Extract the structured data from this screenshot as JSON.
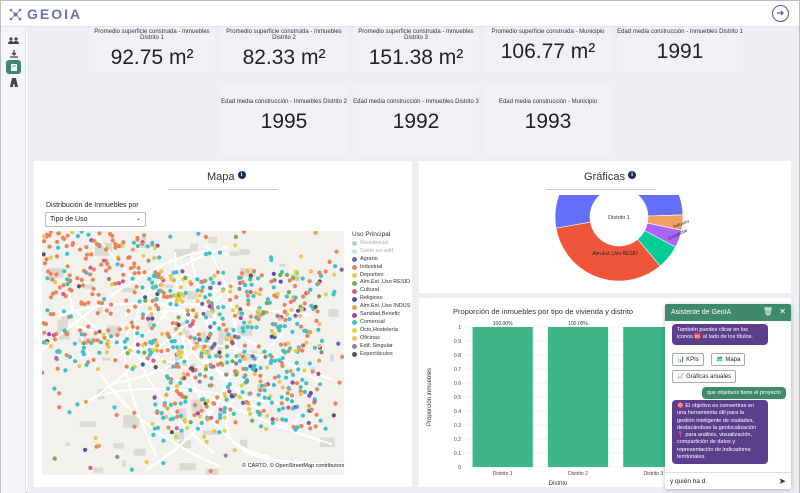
{
  "app": {
    "name": "GEOIA",
    "accent": "#3f8a6b",
    "chat_purple": "#5b3f8c"
  },
  "sidebar": {
    "items": [
      {
        "icon": "users-icon"
      },
      {
        "icon": "download-icon"
      },
      {
        "icon": "book-icon"
      },
      {
        "icon": "map-road-icon"
      }
    ]
  },
  "kpis": [
    {
      "label": "Promedio superficie construida - Inmuebles Distrito 1",
      "value": "92.75 m²"
    },
    {
      "label": "Promedio superficie construida - Inmuebles Distrito 2",
      "value": "82.33 m²"
    },
    {
      "label": "Promedio superficie construida - Inmuebles Distrito 3",
      "value": "151.38 m²"
    },
    {
      "label": "Promedio superficie construida - Municipio",
      "value": "106.77 m²"
    },
    {
      "label": "Edad media construcción - Inmuebles Distrito 1",
      "value": "1991"
    },
    {
      "label": "Edad media construcción - Inmuebles Distrito 2",
      "value": "1995"
    },
    {
      "label": "Edad media construcción - Inmuebles Distrito 3",
      "value": "1992"
    },
    {
      "label": "Edad media construcción - Municipio",
      "value": "1993"
    }
  ],
  "map": {
    "title": "Mapa",
    "dist_label": "Distribución de Inmuebles por",
    "select_value": "Tipo de Uso",
    "attribution": "© CARTO, © OpenStreetMap contributors",
    "legend_title": "Uso Principal",
    "legend": [
      {
        "label": "Residencial",
        "color": "#b8c7d9"
      },
      {
        "label": "Suelo sin edif.",
        "color": "#c9e3df"
      },
      {
        "label": "Agrario",
        "color": "#7b5fa8"
      },
      {
        "label": "Industrial",
        "color": "#e8845a"
      },
      {
        "label": "Deportivo",
        "color": "#e6c84a"
      },
      {
        "label": "Alm.Est.,Uso RESID",
        "color": "#7aa84a"
      },
      {
        "label": "Cultural",
        "color": "#d85a8a"
      },
      {
        "label": "Religioso",
        "color": "#4c56a3"
      },
      {
        "label": "Alm.Est.,Uso INDUS",
        "color": "#e8a04a"
      },
      {
        "label": "Sanidad,Benefic",
        "color": "#9c4aa8"
      },
      {
        "label": "Comercial",
        "color": "#3ec0c9"
      },
      {
        "label": "Ocio,Hostelería",
        "color": "#d6d64a"
      },
      {
        "label": "Oficinas",
        "color": "#f0c060"
      },
      {
        "label": "Edif. Singular",
        "color": "#8a8a8a"
      },
      {
        "label": "Espectáculos",
        "color": "#555555"
      }
    ]
  },
  "graficas": {
    "title": "Gráficas",
    "donut": {
      "center": "Distrito 1",
      "labels": [
        "Alm.Est.,Uso RESID",
        "Industrial",
        "Comercial"
      ]
    },
    "bar_chart_title": "Proporción de inmuebles por tipo de vivienda y distrito"
  },
  "chart_data": {
    "type": "bar",
    "title": "Proporción de inmuebles por tipo de vivienda y distrito",
    "categories": [
      "Distrito 1",
      "Distrito 2",
      "Distrito 3"
    ],
    "values": [
      1,
      1,
      1
    ],
    "data_labels": [
      "100.00%",
      "100.00%",
      ""
    ],
    "xlabel": "Distrito",
    "ylabel": "Proporción inmuebles",
    "yticks": [
      "0",
      "0.1",
      "0.2",
      "0.3",
      "0.4",
      "0.5",
      "0.6",
      "0.7",
      "0.8",
      "0.9",
      "1"
    ],
    "ylim": [
      0,
      1
    ],
    "color": "#3fb58a"
  },
  "chat": {
    "title": "Asistente de GeoIA",
    "msg1": "También puedes clicar en los iconos 🆘 al lado de los títulos.",
    "chips": [
      "📊 KPIs",
      "🗺️ Mapa",
      "📈 Gráficas anuales"
    ],
    "user_msg": "que objetivos tiene el proyecto",
    "msg2": "🎯 El objetivo es convertirse en una herramienta útil para la gestión inteligente de ciudades, destacándose la geolocalización 📍 para análisis, visualización, compartición de datos y representación de indicadores territoriales.",
    "input_value": "y quién ha d"
  }
}
